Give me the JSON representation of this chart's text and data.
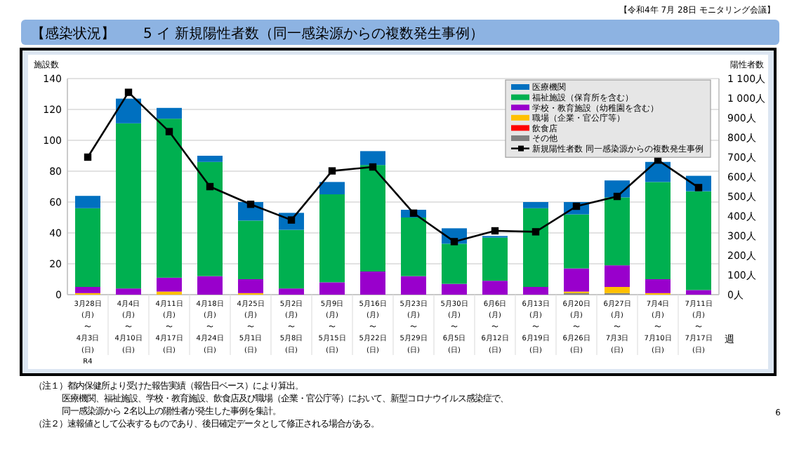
{
  "chart_data": {
    "type": "bar",
    "title": "【感染状況】　　5 イ 新規陽性者数（同一感染源からの複数発生事例）",
    "annotations": [
      "【令和4年 7月 28日 モニタリング会議】",
      "（注１）都内保健所より受けた報告実績（報告日ベース）により算出。",
      "医療機関、福祉施設、学校・教育施設、飲食店及び職場（企業・官公庁等）において、新型コロナウイルス感染症で、",
      "同一感染源から 2名以上の陽性者が発生した事例を集計。",
      "（注２）速報値として公表するものであり、後日確定データとして修正される場合がある。",
      "6"
    ],
    "ylabel": "施設数",
    "y2label": "陽性者数",
    "xlabel": "週",
    "categories": [
      "3月28日\n(月)\n〜\n4月3日\n(日)\nR4",
      "4月4日\n(月)\n〜\n4月10日\n(日)",
      "4月11日\n(月)\n〜\n4月17日\n(日)",
      "4月18日\n(月)\n〜\n4月24日\n(日)",
      "4月25日\n(月)\n〜\n5月1日\n(日)",
      "5月2日\n(月)\n〜\n5月8日\n(日)",
      "5月9日\n(月)\n〜\n5月15日\n(日)",
      "5月16日\n(月)\n〜\n5月22日\n(日)",
      "5月23日\n(月)\n〜\n5月29日\n(日)",
      "5月30日\n(月)\n〜\n6月5日\n(日)",
      "6月6日\n(月)\n〜\n6月12日\n(日)",
      "6月13日\n(月)\n〜\n6月19日\n(日)",
      "6月20日\n(月)\n〜\n6月26日\n(日)",
      "6月27日\n(月)\n〜\n7月3日\n(日)",
      "7月4日\n(月)\n〜\n7月10日\n(日)",
      "7月11日\n(月)\n〜\n7月17日\n(日)"
    ],
    "series": [
      {
        "name": "その他",
        "color": "#808080",
        "values": [
          0,
          0,
          0,
          0,
          0,
          0,
          0,
          0,
          0,
          0,
          0,
          0,
          1,
          1,
          0,
          0
        ]
      },
      {
        "name": "飲食店",
        "color": "#ff0000",
        "values": [
          0,
          0,
          0,
          0,
          0,
          0,
          0,
          0,
          0,
          0,
          0,
          0,
          0,
          0,
          0,
          0
        ]
      },
      {
        "name": "職場（企業・官公庁等）",
        "color": "#ffc000",
        "values": [
          1,
          0,
          2,
          0,
          1,
          0,
          0,
          0,
          0,
          0,
          0,
          0,
          1,
          4,
          1,
          0
        ]
      },
      {
        "name": "学校・教育施設（幼稚園を含む）",
        "color": "#9900cc",
        "values": [
          4,
          4,
          9,
          12,
          9,
          4,
          8,
          15,
          12,
          7,
          9,
          5,
          15,
          14,
          9,
          3
        ]
      },
      {
        "name": "福祉施設（保育所を含む）",
        "color": "#00b050",
        "values": [
          51,
          107,
          103,
          74,
          38,
          38,
          57,
          69,
          38,
          26,
          28,
          51,
          35,
          44,
          63,
          64
        ]
      },
      {
        "name": "医療機関",
        "color": "#0070c0",
        "values": [
          8,
          16,
          7,
          4,
          12,
          11,
          8,
          9,
          5,
          10,
          1,
          4,
          8,
          11,
          13,
          10
        ]
      },
      {
        "name": "新規陽性者数 同一感染源からの複数発生事例",
        "type": "line",
        "axis": "y2",
        "color": "#000000",
        "values": [
          700,
          1030,
          830,
          550,
          460,
          380,
          630,
          650,
          415,
          270,
          325,
          320,
          450,
          500,
          685,
          545
        ]
      }
    ],
    "stacked": true,
    "ylim": [
      0,
      140
    ],
    "yticks": [
      0,
      20,
      40,
      60,
      80,
      100,
      120,
      140
    ],
    "y2lim": [
      0,
      1100
    ],
    "y2ticks": [
      {
        "value": 0,
        "label": "0人"
      },
      {
        "value": 100,
        "label": "100人"
      },
      {
        "value": 200,
        "label": "200人"
      },
      {
        "value": 300,
        "label": "300人"
      },
      {
        "value": 400,
        "label": "400人"
      },
      {
        "value": 500,
        "label": "500人"
      },
      {
        "value": 600,
        "label": "600人"
      },
      {
        "value": 700,
        "label": "700人"
      },
      {
        "value": 800,
        "label": "800人"
      },
      {
        "value": 900,
        "label": "900人"
      },
      {
        "value": 1000,
        "label": "1 000人"
      },
      {
        "value": 1100,
        "label": "1 100人"
      }
    ],
    "grid": "y",
    "legend": "top right",
    "marker": "square"
  }
}
